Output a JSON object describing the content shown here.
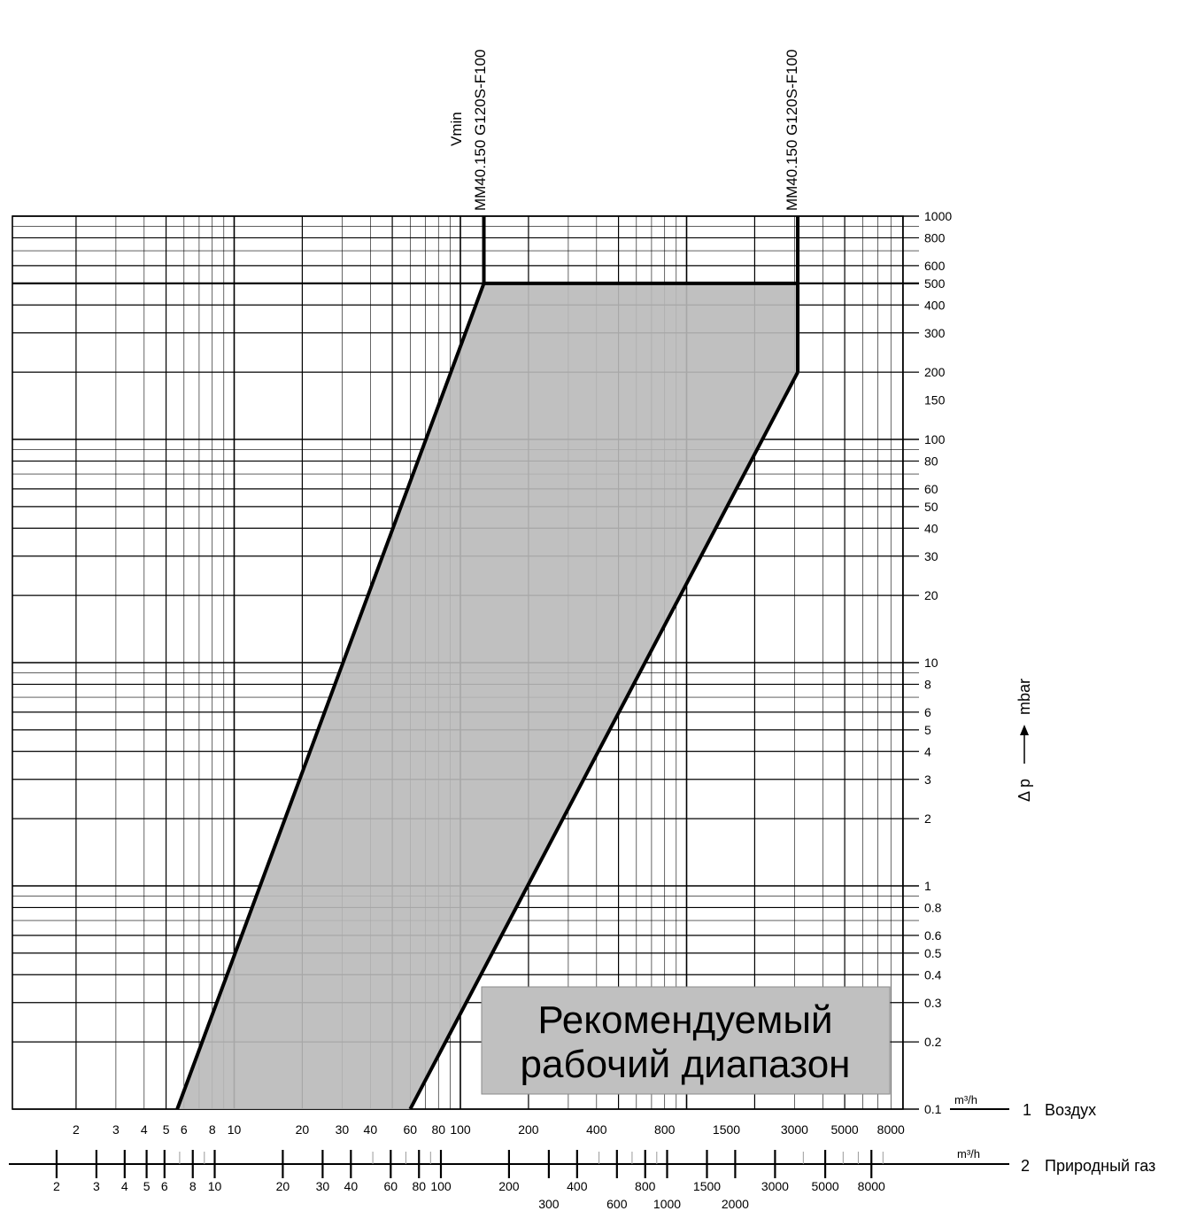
{
  "chart_data": {
    "type": "area",
    "x_scale": "log",
    "y_scale": "log",
    "xlim": [
      1,
      12000
    ],
    "ylim": [
      0.1,
      1000
    ],
    "grid": true,
    "y_axis": {
      "label_delta": "Δ p",
      "label_unit": "mbar",
      "ticks": [
        "1000",
        "800",
        "600",
        "500",
        "400",
        "300",
        "200",
        "150",
        "100",
        "80",
        "60",
        "50",
        "40",
        "30",
        "20",
        "10",
        "8",
        "6",
        "5",
        "4",
        "3",
        "2",
        "1",
        "0.8",
        "0.6",
        "0.5",
        "0.4",
        "0.3",
        "0.2",
        "0.1"
      ],
      "tick_values": [
        1000,
        800,
        600,
        500,
        400,
        300,
        200,
        150,
        100,
        80,
        60,
        50,
        40,
        30,
        20,
        10,
        8,
        6,
        5,
        4,
        3,
        2,
        1,
        0.8,
        0.6,
        0.5,
        0.4,
        0.3,
        0.2,
        0.1
      ]
    },
    "x_axis_air": {
      "number": "1",
      "name": "Воздух",
      "unit": "m³/h",
      "ticks": [
        "2",
        "3",
        "4",
        "5",
        "6",
        "8",
        "10",
        "20",
        "30",
        "40",
        "60",
        "80",
        "100",
        "200",
        "400",
        "800",
        "1500",
        "3000",
        "5000",
        "8000"
      ],
      "tick_values": [
        2,
        3,
        4,
        5,
        6,
        8,
        10,
        20,
        30,
        40,
        60,
        80,
        100,
        200,
        400,
        800,
        1500,
        3000,
        5000,
        8000
      ]
    },
    "x_axis_gas": {
      "number": "2",
      "name": "Природный газ",
      "unit": "m³/h",
      "ticks": [
        "2",
        "3",
        "4",
        "5",
        "6",
        "8",
        "10",
        "20",
        "30",
        "40",
        "60",
        "80",
        "100",
        "200",
        "400",
        "800",
        "1500",
        "3000",
        "5000",
        "8000"
      ],
      "tick_values": [
        2,
        3,
        4,
        5,
        6,
        8,
        10,
        20,
        30,
        40,
        60,
        80,
        100,
        200,
        400,
        800,
        1500,
        3000,
        5000,
        8000
      ],
      "ticks_lower_row": [
        "300",
        "600",
        "1000",
        "2000"
      ],
      "tick_values_lower_row": [
        300,
        600,
        1000,
        2000
      ]
    },
    "series": [
      {
        "name": "Vmin MM40.150 G120S-F100",
        "x": [
          5.6,
          127
        ],
        "y": [
          0.1,
          500
        ]
      },
      {
        "name": "MM40.150 G120S-F100",
        "x": [
          60,
          3100
        ],
        "y": [
          0.1,
          200
        ]
      }
    ],
    "limits": {
      "p_max": 500,
      "vmin_x": 127,
      "vmax_x": 3100
    },
    "region_label_lines": [
      "Рекомендуемый",
      "рабочий диапазон"
    ],
    "top_labels": {
      "left_line1": "Vmin",
      "left_line2": "MM40.150 G120S-F100",
      "right": "MM40.150 G120S-F100"
    }
  }
}
